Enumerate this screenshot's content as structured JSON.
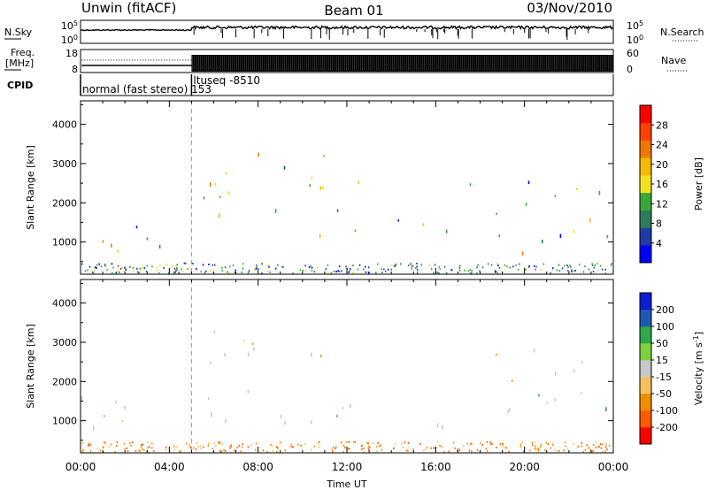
{
  "header": {
    "station": "Unwin (fitACF)",
    "beam": "Beam 01",
    "date": "03/Nov/2010"
  },
  "strips": {
    "nsky_label": "N.Sky",
    "nsky_ticks": [
      "10^5",
      "10^0"
    ],
    "nsearch_label": "N.Search",
    "nsearch_ticks": [
      "10^5",
      "10^0"
    ],
    "freq_label_1": "Freq.",
    "freq_label_2": "[MHz]",
    "freq_ticks": [
      "18",
      "8"
    ],
    "nave_label": "Nave",
    "nave_ticks": [
      "60",
      "0"
    ],
    "cpid_label": "CPID",
    "cpid_segments": [
      {
        "start_hour": 0.0,
        "text": "normal (fast stereo) 153"
      },
      {
        "start_hour": 5.0,
        "text": "ltuseq -8510"
      }
    ]
  },
  "colors": {
    "power_scale": [
      "#0000ff",
      "#1f3ba8",
      "#2e7d5a",
      "#39a83a",
      "#f0e020",
      "#f5b800",
      "#f07800",
      "#ff4000",
      "#ff0000"
    ],
    "velocity_scale": [
      "#ff0000",
      "#ff5a00",
      "#f08c00",
      "#f5c060",
      "#c8c8c8",
      "#7fd03a",
      "#2ea84a",
      "#1f5ab0",
      "#0a1ed2"
    ]
  },
  "chart_data": [
    {
      "type": "heatmap",
      "panel": "power",
      "ylabel": "Slant Range [km]",
      "xlabel": "Time UT",
      "x_ticks": [
        "00:00",
        "04:00",
        "08:00",
        "12:00",
        "16:00",
        "20:00",
        "00:00"
      ],
      "y_ticks": [
        1000,
        2000,
        3000,
        4000
      ],
      "ylim": [
        180,
        4600
      ],
      "xlim_hours": [
        0,
        24
      ],
      "colorbar_label": "Power [dB]",
      "colorbar_ticks": [
        4,
        8,
        12,
        16,
        20,
        24,
        28
      ],
      "colorbar_range": [
        0,
        32
      ],
      "mode_change_hour": 5.0,
      "echo_regions": [
        {
          "t0": 0.0,
          "t1": 5.0,
          "r0": 700,
          "r1": 1700,
          "value": 12
        },
        {
          "t0": 5.0,
          "t1": 11.0,
          "r0": 900,
          "r1": 3300,
          "value": 14
        },
        {
          "t0": 11.0,
          "t1": 12.6,
          "r0": 1100,
          "r1": 3000,
          "value": 12
        },
        {
          "t0": 13.8,
          "t1": 16.8,
          "r0": 800,
          "r1": 1500,
          "value": 9
        },
        {
          "t0": 14.0,
          "t1": 15.2,
          "r0": 1500,
          "r1": 2400,
          "value": 7
        },
        {
          "t0": 16.5,
          "t1": 17.8,
          "r0": 2200,
          "r1": 3200,
          "value": 6
        },
        {
          "t0": 18.7,
          "t1": 24.0,
          "r0": 700,
          "r1": 2900,
          "value": 10
        }
      ]
    },
    {
      "type": "heatmap",
      "panel": "velocity",
      "ylabel": "Slant Range [km]",
      "xlabel": "Time UT",
      "x_ticks": [
        "00:00",
        "04:00",
        "08:00",
        "12:00",
        "16:00",
        "20:00",
        "00:00"
      ],
      "y_ticks": [
        1000,
        2000,
        3000,
        4000
      ],
      "ylim": [
        180,
        4600
      ],
      "xlim_hours": [
        0,
        24
      ],
      "colorbar_label": "Velocity [m s^-1]",
      "colorbar_ticks": [
        -200,
        -100,
        -50,
        -15,
        15,
        50,
        100,
        200
      ],
      "mode_change_hour": 5.0,
      "echo_regions": [
        {
          "t0": 0.0,
          "t1": 5.0,
          "r0": 700,
          "r1": 1700,
          "value": 0
        },
        {
          "t0": 5.0,
          "t1": 11.0,
          "r0": 900,
          "r1": 3300,
          "value": -10
        },
        {
          "t0": 11.0,
          "t1": 12.6,
          "r0": 1100,
          "r1": 3000,
          "value": 0
        },
        {
          "t0": 13.8,
          "t1": 16.8,
          "r0": 800,
          "r1": 1500,
          "value": 0
        },
        {
          "t0": 18.7,
          "t1": 24.0,
          "r0": 700,
          "r1": 2900,
          "value": 0
        }
      ]
    }
  ]
}
